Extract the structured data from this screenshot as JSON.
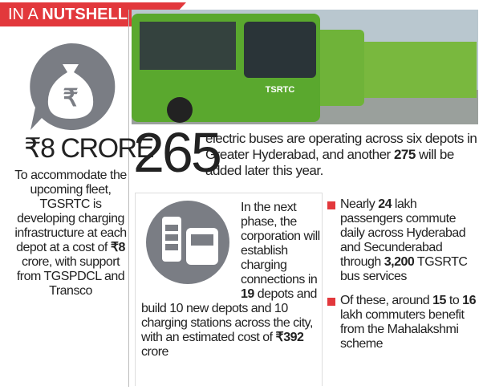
{
  "header": {
    "parts": [
      {
        "text": "IN A "
      },
      {
        "text": "NUTSHELL",
        "bold": true
      }
    ]
  },
  "left": {
    "amount": "₹8 CRORE",
    "parts": [
      {
        "text": "To accommodate the upcoming fleet, TGSRTC is developing charging infrastructure at each depot at a cost of "
      },
      {
        "text": "₹8",
        "bold": true
      },
      {
        "text": " crore, with support from TGSPDCL and Transco"
      }
    ]
  },
  "photo": {
    "text": "TSRTC"
  },
  "headline": {
    "number": "265",
    "parts": [
      {
        "text": "electric buses are operating across six depots in Greater Hyderabad, and another "
      },
      {
        "text": "275",
        "bold": true
      },
      {
        "text": " will be added later this year."
      }
    ]
  },
  "next_phase": {
    "parts": [
      {
        "text": "In the next phase, the corporation will establish charging connections in "
      },
      {
        "text": "19",
        "bold": true
      },
      {
        "text": " depots and build 10 new depots and 10 charging stations across the city, with an estimated cost of "
      },
      {
        "text": "₹392",
        "bold": true
      },
      {
        "text": " crore"
      }
    ]
  },
  "bullets": [
    {
      "parts": [
        {
          "text": "Nearly "
        },
        {
          "text": "24",
          "bold": true
        },
        {
          "text": " lakh passengers commute daily across Hyderabad and Secunderabad through "
        },
        {
          "text": "3,200",
          "bold": true
        },
        {
          "text": " TGSRTC bus services"
        }
      ]
    },
    {
      "parts": [
        {
          "text": "Of these, around "
        },
        {
          "text": "15",
          "bold": true
        },
        {
          "text": " to "
        },
        {
          "text": "16",
          "bold": true
        },
        {
          "text": " lakh commuters benefit from the Mahalakshmi scheme"
        }
      ]
    }
  ]
}
